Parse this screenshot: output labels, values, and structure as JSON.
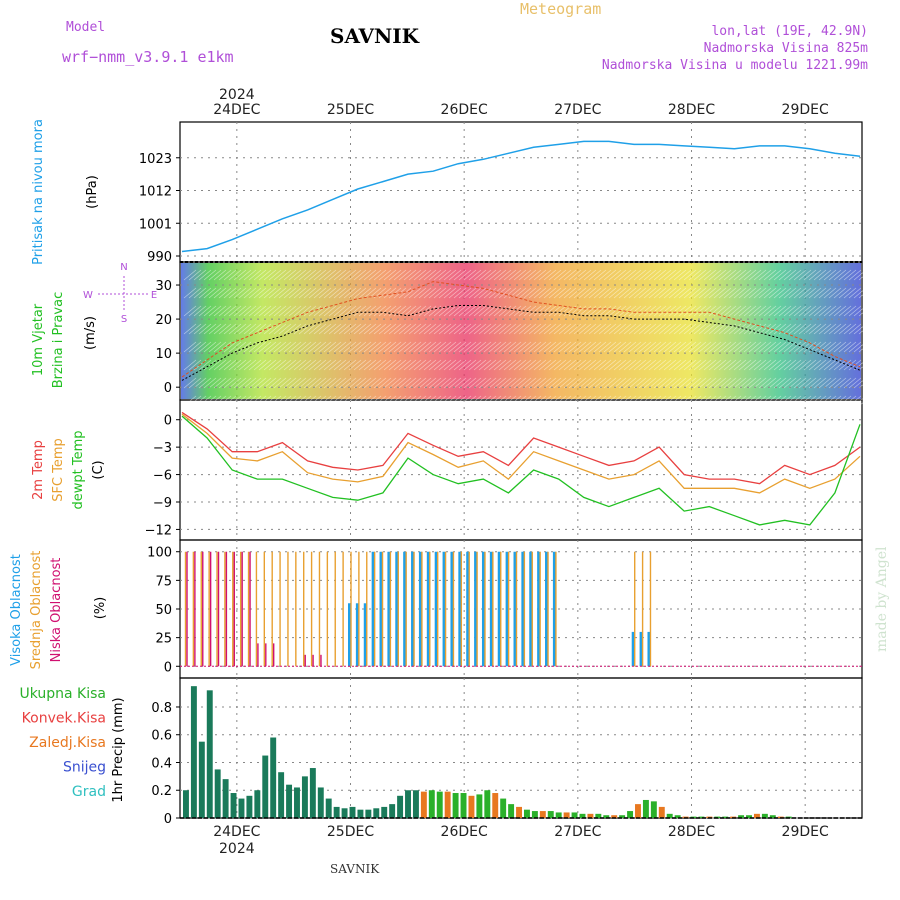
{
  "header": {
    "model_label": "Model",
    "model_name": "wrf−nmm_v3.9.1 e1km",
    "station": "SAVNIK",
    "product": "Meteogram",
    "lonlat": "lon,lat (19E, 42.9N)",
    "altitude": "Nadmorska Visina 825m",
    "model_altitude": "Nadmorska Visina u modelu 1221.99m",
    "footer_station": "SAVNIK",
    "credit": "made by Angel"
  },
  "colors": {
    "pressure": "#1fa0e8",
    "wind_label": "#22c022",
    "t2m": "#e84040",
    "sfc": "#e8a030",
    "dewpt": "#22c022",
    "cloud_high": "#1fa0e8",
    "cloud_mid": "#e8a030",
    "cloud_low": "#d01070",
    "precip_total": "#2ab02a",
    "precip_conv": "#e84040",
    "precip_frz": "#e87820",
    "precip_snow": "#3a50d0",
    "precip_grad": "#30c0c0",
    "precip_total_dark": "#1a7a5a"
  },
  "chart_data": [
    {
      "type": "line",
      "panel": "pressure",
      "ylabel_main": "Pritisak na nivou mora",
      "ylabel_unit": "(hPa)",
      "yticks": [
        990,
        1001,
        1012,
        1023
      ],
      "ylim": [
        990,
        1033
      ],
      "x_start": "23DEC 12UTC",
      "x_step_hours": 6,
      "date_ticks": [
        "24DEC",
        "25DEC",
        "26DEC",
        "27DEC",
        "28DEC",
        "29DEC"
      ],
      "year_label": "2024",
      "series": [
        {
          "values": [
            991.5,
            992.5,
            995.5,
            999.0,
            1002.5,
            1005.5,
            1009.0,
            1012.5,
            1015.0,
            1017.5,
            1018.5,
            1021.0,
            1022.5,
            1024.5,
            1026.5,
            1027.5,
            1028.5,
            1028.5,
            1027.5,
            1027.5,
            1027.0,
            1026.5,
            1026.0,
            1027.0,
            1027.0,
            1026.0,
            1024.5,
            1023.5
          ]
        }
      ]
    },
    {
      "type": "line",
      "panel": "wind",
      "ylabel_main": "10m Vjetar",
      "ylabel_sub": "Brzina i Pravac",
      "ylabel_unit": "(m/s)",
      "compass": {
        "n": "N",
        "s": "S",
        "e": "E",
        "w": "W"
      },
      "yticks": [
        0,
        10,
        20,
        30
      ],
      "ylim": [
        -2,
        35
      ],
      "series": [
        {
          "values": [
            2,
            6,
            10,
            13,
            15,
            18,
            20,
            22,
            22,
            21,
            23,
            24,
            24,
            23,
            22,
            22,
            21,
            21,
            20,
            20,
            20,
            19,
            18,
            16,
            14,
            11,
            8,
            5
          ]
        },
        {
          "values": [
            3,
            8,
            13,
            16,
            19,
            22,
            24,
            26,
            27,
            28,
            31,
            30,
            29,
            27,
            25,
            24,
            23,
            23,
            22,
            22,
            22,
            22,
            20,
            18,
            16,
            13,
            9,
            6
          ]
        }
      ]
    },
    {
      "type": "line",
      "panel": "temperature",
      "ylabel_lines": [
        "2m Temp",
        "SFC Temp",
        "dewpt Temp"
      ],
      "ylabel_unit": "(C)",
      "yticks": [
        0,
        -3,
        -6,
        -9,
        -12
      ],
      "ylim": [
        -12.5,
        1.5
      ],
      "series": [
        {
          "name": "2m Temp",
          "values": [
            0.8,
            -1.0,
            -3.5,
            -3.5,
            -2.5,
            -4.5,
            -5.2,
            -5.5,
            -5.0,
            -1.5,
            -2.8,
            -4.0,
            -3.5,
            -5.0,
            -2.0,
            -3.0,
            -4.0,
            -5.0,
            -4.5,
            -3.0,
            -6.0,
            -6.5,
            -6.5,
            -7.0,
            -5.0,
            -6.0,
            -5.0,
            -3.0
          ]
        },
        {
          "name": "SFC Temp",
          "values": [
            0.6,
            -1.5,
            -4.2,
            -4.5,
            -3.5,
            -5.8,
            -6.5,
            -6.8,
            -6.2,
            -2.5,
            -3.8,
            -5.2,
            -4.5,
            -6.5,
            -3.5,
            -4.5,
            -5.5,
            -6.5,
            -6.0,
            -4.5,
            -7.5,
            -7.5,
            -7.5,
            -8.0,
            -6.5,
            -7.5,
            -6.5,
            -4.0
          ]
        },
        {
          "name": "dewpt Temp",
          "values": [
            0.4,
            -2.0,
            -5.5,
            -6.5,
            -6.5,
            -7.5,
            -8.5,
            -8.8,
            -8.0,
            -4.2,
            -6.0,
            -7.0,
            -6.5,
            -8.0,
            -5.5,
            -6.5,
            -8.5,
            -9.5,
            -8.5,
            -7.5,
            -10.0,
            -9.5,
            -10.5,
            -11.5,
            -11.0,
            -11.5,
            -8.0,
            -0.5
          ]
        }
      ]
    },
    {
      "type": "bar",
      "panel": "clouds",
      "ylabel_lines": [
        "Visoka Oblacnost",
        "Srednja Oblacnost",
        "Niska Oblacnost"
      ],
      "ylabel_unit": "(%)",
      "yticks": [
        0,
        25,
        50,
        75,
        100
      ],
      "ylim": [
        -5,
        105
      ],
      "series": [
        {
          "name": "Visoka Oblacnost",
          "values": [
            0,
            0,
            0,
            0,
            0,
            0,
            0,
            55,
            100,
            100,
            100,
            100,
            100,
            100,
            100,
            100,
            0,
            0,
            0,
            30,
            0,
            0,
            0,
            0,
            0,
            0,
            0,
            0
          ]
        },
        {
          "name": "Srednja Oblacnost",
          "values": [
            100,
            100,
            100,
            100,
            100,
            100,
            100,
            100,
            100,
            100,
            100,
            100,
            100,
            100,
            100,
            100,
            0,
            0,
            0,
            100,
            0,
            0,
            0,
            0,
            0,
            0,
            0,
            0
          ]
        },
        {
          "name": "Niska Oblacnost",
          "values": [
            100,
            100,
            100,
            20,
            0,
            10,
            0,
            0,
            0,
            0,
            0,
            0,
            0,
            0,
            0,
            0,
            0,
            0,
            0,
            0,
            0,
            0,
            0,
            0,
            0,
            0,
            0,
            0
          ]
        }
      ]
    },
    {
      "type": "bar",
      "panel": "precip",
      "legend": [
        "Ukupna Kisa",
        "Konvek.Kisa",
        "Zaledj.Kisa",
        "Snijeg",
        "Grad"
      ],
      "ylabel_main": "1hr Precip",
      "ylabel_unit": "(mm)",
      "yticks": [
        0,
        0.2,
        0.4,
        0.6,
        0.8
      ],
      "ylim": [
        0,
        0.98
      ],
      "series": [
        {
          "name": "Ukupna Kisa",
          "values": [
            0.2,
            0.95,
            0.55,
            0.92,
            0.35,
            0.28,
            0.18,
            0.14,
            0.16,
            0.2,
            0.45,
            0.58,
            0.33,
            0.24,
            0.22,
            0.3,
            0.36,
            0.22,
            0.14,
            0.08,
            0.07,
            0.08,
            0.06,
            0.06,
            0.07,
            0.08,
            0.1,
            0.16,
            0.2,
            0.2,
            0.19,
            0.2,
            0.19,
            0.19,
            0.18,
            0.18,
            0.16,
            0.17,
            0.2,
            0.18,
            0.14,
            0.1,
            0.08,
            0.06,
            0.05,
            0.05,
            0.05,
            0.04,
            0.04,
            0.04,
            0.03,
            0.03,
            0.03,
            0.02,
            0.02,
            0.02,
            0.05,
            0.1,
            0.13,
            0.12,
            0.08,
            0.03,
            0.02,
            0.01,
            0.01,
            0.01,
            0.01,
            0.01,
            0.01,
            0.01,
            0.02,
            0.02,
            0.03,
            0.03,
            0.02,
            0.01,
            0.01,
            0.0,
            0.0,
            0.0
          ]
        }
      ]
    }
  ]
}
